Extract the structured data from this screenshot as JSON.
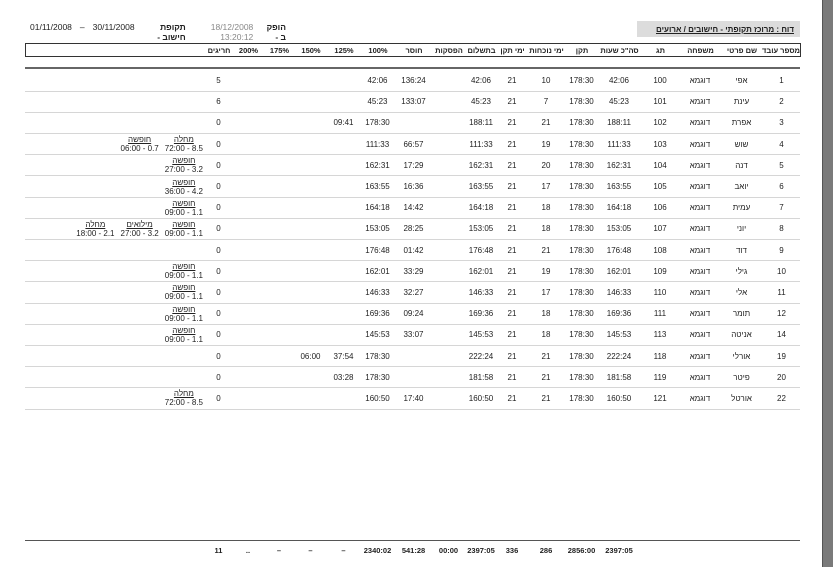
{
  "report_title": "דוח : מרוכז תקופתי  -  חישובים / ארועים",
  "meta": {
    "produced_label": "הופק ב -",
    "produced_at": "18/12/2008 13:20:12",
    "period_label": "תקופת חישוב -",
    "period_end": "30/11/2008",
    "dash": "–",
    "period_start": "01/11/2008"
  },
  "columns": [
    "מספר עובד",
    "שם פרטי",
    "משפחה",
    "תג",
    "סה\"כ שעות",
    "תקן",
    "ימי נוכחות",
    "ימי תקן",
    "בתשלום",
    "הפסקות",
    "חוסר",
    "100%",
    "125%",
    "150%",
    "175%",
    "200%",
    "חריגים",
    ""
  ],
  "rows": [
    {
      "cells": [
        "1",
        "אפי",
        "דוגמא",
        "100",
        "42:06",
        "178:30",
        "10",
        "21",
        "42:06",
        "",
        "136:24",
        "42:06",
        "",
        "",
        "",
        "",
        "5"
      ],
      "notes": []
    },
    {
      "cells": [
        "2",
        "עינת",
        "דוגמא",
        "101",
        "45:23",
        "178:30",
        "7",
        "21",
        "45:23",
        "",
        "133:07",
        "45:23",
        "",
        "",
        "",
        "",
        "6"
      ],
      "notes": []
    },
    {
      "cells": [
        "3",
        "אפרת",
        "דוגמא",
        "102",
        "188:11",
        "178:30",
        "21",
        "21",
        "188:11",
        "",
        "",
        "178:30",
        "09:41",
        "",
        "",
        "",
        "0"
      ],
      "notes": []
    },
    {
      "cells": [
        "4",
        "שוש",
        "דוגמא",
        "103",
        "111:33",
        "178:30",
        "19",
        "21",
        "111:33",
        "",
        "66:57",
        "111:33",
        "",
        "",
        "",
        "",
        "0"
      ],
      "notes": [
        {
          "label": "מחלה",
          "value": "72:00 - 8.5"
        },
        {
          "label": "חופשה",
          "value": "06:00 - 0.7"
        }
      ]
    },
    {
      "cells": [
        "5",
        "דנה",
        "דוגמא",
        "104",
        "162:31",
        "178:30",
        "20",
        "21",
        "162:31",
        "",
        "17:29",
        "162:31",
        "",
        "",
        "",
        "",
        "0"
      ],
      "notes": [
        {
          "label": "חופשה",
          "value": "27:00 - 3.2"
        }
      ]
    },
    {
      "cells": [
        "6",
        "יואב",
        "דוגמא",
        "105",
        "163:55",
        "178:30",
        "17",
        "21",
        "163:55",
        "",
        "16:36",
        "163:55",
        "",
        "",
        "",
        "",
        "0"
      ],
      "notes": [
        {
          "label": "חופשה",
          "value": "36:00 - 4.2"
        }
      ]
    },
    {
      "cells": [
        "7",
        "עמית",
        "דוגמא",
        "106",
        "164:18",
        "178:30",
        "18",
        "21",
        "164:18",
        "",
        "14:42",
        "164:18",
        "",
        "",
        "",
        "",
        "0"
      ],
      "notes": [
        {
          "label": "חופשה",
          "value": "09:00 - 1.1"
        }
      ]
    },
    {
      "cells": [
        "8",
        "יוני",
        "דוגמא",
        "107",
        "153:05",
        "178:30",
        "18",
        "21",
        "153:05",
        "",
        "28:25",
        "153:05",
        "",
        "",
        "",
        "",
        "0"
      ],
      "notes": [
        {
          "label": "חופשה",
          "value": "09:00 - 1.1"
        },
        {
          "label": "מילואים",
          "value": "27:00 - 3.2"
        },
        {
          "label": "מחלה",
          "value": "18:00 - 2.1"
        }
      ]
    },
    {
      "cells": [
        "9",
        "דוד",
        "דוגמא",
        "108",
        "176:48",
        "178:30",
        "21",
        "21",
        "176:48",
        "",
        "01:42",
        "176:48",
        "",
        "",
        "",
        "",
        "0"
      ],
      "notes": []
    },
    {
      "cells": [
        "10",
        "גילי",
        "דוגמא",
        "109",
        "162:01",
        "178:30",
        "19",
        "21",
        "162:01",
        "",
        "33:29",
        "162:01",
        "",
        "",
        "",
        "",
        "0"
      ],
      "notes": [
        {
          "label": "חופשה",
          "value": "09:00 - 1.1"
        }
      ]
    },
    {
      "cells": [
        "11",
        "אלי",
        "דוגמא",
        "110",
        "146:33",
        "178:30",
        "17",
        "21",
        "146:33",
        "",
        "32:27",
        "146:33",
        "",
        "",
        "",
        "",
        "0"
      ],
      "notes": [
        {
          "label": "חופשה",
          "value": "09:00 - 1.1"
        }
      ]
    },
    {
      "cells": [
        "12",
        "תומר",
        "דוגמא",
        "111",
        "169:36",
        "178:30",
        "18",
        "21",
        "169:36",
        "",
        "09:24",
        "169:36",
        "",
        "",
        "",
        "",
        "0"
      ],
      "notes": [
        {
          "label": "חופשה",
          "value": "09:00 - 1.1"
        }
      ]
    },
    {
      "cells": [
        "14",
        "אניטה",
        "דוגמא",
        "113",
        "145:53",
        "178:30",
        "18",
        "21",
        "145:53",
        "",
        "33:07",
        "145:53",
        "",
        "",
        "",
        "",
        "0"
      ],
      "notes": [
        {
          "label": "חופשה",
          "value": "09:00 - 1.1"
        }
      ]
    },
    {
      "cells": [
        "19",
        "אורלי",
        "דוגמא",
        "118",
        "222:24",
        "178:30",
        "21",
        "21",
        "222:24",
        "",
        "",
        "178:30",
        "37:54",
        "06:00",
        "",
        "",
        "0"
      ],
      "notes": []
    },
    {
      "cells": [
        "20",
        "פיטר",
        "דוגמא",
        "119",
        "181:58",
        "178:30",
        "21",
        "21",
        "181:58",
        "",
        "",
        "178:30",
        "03:28",
        "",
        "",
        "",
        "0"
      ],
      "notes": []
    },
    {
      "cells": [
        "22",
        "אורטל",
        "דוגמא",
        "121",
        "160:50",
        "178:30",
        "21",
        "21",
        "160:50",
        "",
        "17:40",
        "160:50",
        "",
        "",
        "",
        "",
        "0"
      ],
      "notes": [
        {
          "label": "מחלה",
          "value": "72:00 - 8.5"
        }
      ]
    }
  ],
  "totals": [
    "",
    "",
    "",
    "",
    "2397:05",
    "2856:00",
    "286",
    "336",
    "2397:05",
    "00:00",
    "541:28",
    "2340:02",
    "–",
    "–",
    "–",
    "..",
    "11",
    ""
  ]
}
